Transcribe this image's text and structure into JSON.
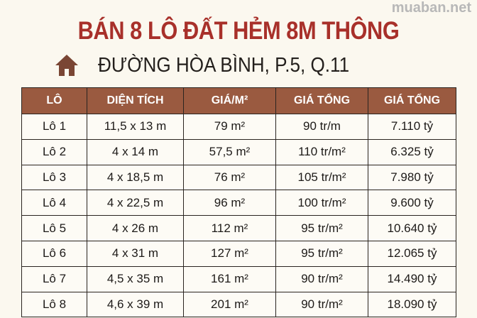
{
  "title": "BÁN 8 LÔ ĐẤT HẺM 8M THÔNG",
  "subtitle": "ĐƯỜNG HÒA BÌNH, P.5, Q.11",
  "icon": "house-icon",
  "colors": {
    "title": "#a8302a",
    "header_bg": "#9a5a40",
    "icon": "#7a4634"
  },
  "watermark": "muaban.net",
  "table": {
    "headers": [
      "LÔ",
      "DIỆN TÍCH",
      "GIÁ/M²",
      "GIÁ TỔNG",
      "GIÁ TỔNG"
    ],
    "rows": [
      [
        "Lô 1",
        "11,5 x 13 m",
        "79 m²",
        "90 tr/m",
        "7.110 tỷ"
      ],
      [
        "Lô 2",
        "4 x 14 m",
        "57,5 m²",
        "110 tr/m²",
        "6.325 tỷ"
      ],
      [
        "Lô 3",
        "4 x 18,5 m",
        "76 m²",
        "105 tr/m²",
        "7.980 tỷ"
      ],
      [
        "Lô 4",
        "4 x 22,5 m",
        "96 m²",
        "100 tr/m²",
        "9.600 tỷ"
      ],
      [
        "Lô 5",
        "4 x 26 m",
        "112 m²",
        "95 tr/m²",
        "10.640 tỷ"
      ],
      [
        "Lô 6",
        "4 x 31 m",
        "127 m²",
        "95 tr/m²",
        "12.065 tỷ"
      ],
      [
        "Lô 7",
        "4,5 x 35 m",
        "161 m²",
        "90 tr/m²",
        "14.490 tỷ"
      ],
      [
        "Lô 8",
        "4,6 x 39 m",
        "201 m²",
        "90 tr/m²",
        "18.090 tỷ"
      ]
    ]
  }
}
